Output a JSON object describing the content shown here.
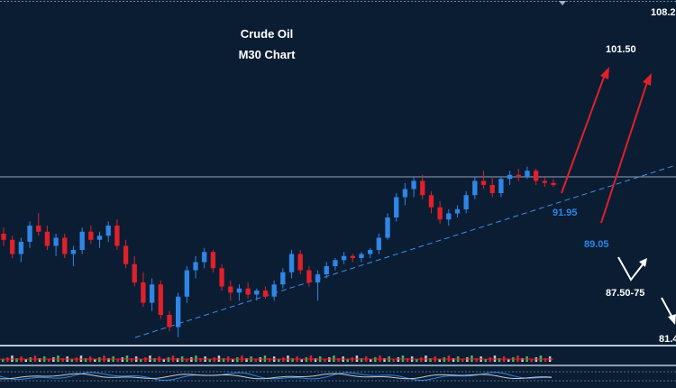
{
  "chart": {
    "title_line1": "Crude Oil",
    "title_line2": "M30 Chart"
  },
  "levels": {
    "top_right_price": "108.2",
    "target_high": "101.50",
    "support_a": "91.95",
    "support_b": "89.05",
    "support_zone": "87.50-75",
    "bottom_right_price": "81.4"
  },
  "colors": {
    "background": "#0b1d33",
    "bull_candle": "#2f86e6",
    "bear_candle": "#e0202a",
    "trendline": "#3a8ee6",
    "arrow_red": "#e0202a",
    "arrow_white": "#ffffff",
    "label_blue": "#2f86e6",
    "label_white": "#ffffff",
    "panel_line": "#9fb2c8"
  },
  "chart_data": {
    "type": "candlestick",
    "title": "Crude Oil M30 Chart",
    "notes": "Approximate OHLC read visually; price axis labels largely off-screen. Values are relative and estimated.",
    "candles": [
      {
        "o": 94.2,
        "h": 94.5,
        "l": 93.6,
        "c": 93.9
      },
      {
        "o": 93.9,
        "h": 94.1,
        "l": 93.0,
        "c": 93.2
      },
      {
        "o": 93.2,
        "h": 94.0,
        "l": 92.8,
        "c": 93.8
      },
      {
        "o": 93.8,
        "h": 94.8,
        "l": 93.5,
        "c": 94.6
      },
      {
        "o": 94.6,
        "h": 95.2,
        "l": 94.1,
        "c": 94.3
      },
      {
        "o": 94.3,
        "h": 94.6,
        "l": 93.4,
        "c": 93.6
      },
      {
        "o": 93.6,
        "h": 94.2,
        "l": 93.1,
        "c": 94.0
      },
      {
        "o": 94.0,
        "h": 94.2,
        "l": 93.0,
        "c": 93.2
      },
      {
        "o": 93.2,
        "h": 93.6,
        "l": 92.6,
        "c": 93.4
      },
      {
        "o": 93.4,
        "h": 94.5,
        "l": 93.2,
        "c": 94.3
      },
      {
        "o": 94.3,
        "h": 94.6,
        "l": 93.7,
        "c": 93.9
      },
      {
        "o": 93.9,
        "h": 94.3,
        "l": 93.5,
        "c": 94.1
      },
      {
        "o": 94.1,
        "h": 94.8,
        "l": 93.8,
        "c": 94.6
      },
      {
        "o": 94.6,
        "h": 94.9,
        "l": 93.4,
        "c": 93.6
      },
      {
        "o": 93.6,
        "h": 93.9,
        "l": 92.5,
        "c": 92.7
      },
      {
        "o": 92.7,
        "h": 93.1,
        "l": 91.6,
        "c": 91.8
      },
      {
        "o": 91.8,
        "h": 92.3,
        "l": 90.6,
        "c": 90.8
      },
      {
        "o": 90.8,
        "h": 92.0,
        "l": 90.4,
        "c": 91.7
      },
      {
        "o": 91.7,
        "h": 91.9,
        "l": 90.0,
        "c": 90.2
      },
      {
        "o": 90.2,
        "h": 90.4,
        "l": 89.4,
        "c": 89.6
      },
      {
        "o": 89.6,
        "h": 91.3,
        "l": 89.1,
        "c": 91.1
      },
      {
        "o": 91.1,
        "h": 92.6,
        "l": 90.8,
        "c": 92.4
      },
      {
        "o": 92.4,
        "h": 93.1,
        "l": 92.0,
        "c": 92.8
      },
      {
        "o": 92.8,
        "h": 93.5,
        "l": 92.5,
        "c": 93.3
      },
      {
        "o": 93.3,
        "h": 93.4,
        "l": 92.3,
        "c": 92.5
      },
      {
        "o": 92.5,
        "h": 92.7,
        "l": 91.4,
        "c": 91.6
      },
      {
        "o": 91.6,
        "h": 91.9,
        "l": 90.9,
        "c": 91.3
      },
      {
        "o": 91.3,
        "h": 91.7,
        "l": 90.9,
        "c": 91.5
      },
      {
        "o": 91.5,
        "h": 91.8,
        "l": 91.0,
        "c": 91.2
      },
      {
        "o": 91.2,
        "h": 91.5,
        "l": 90.9,
        "c": 91.4
      },
      {
        "o": 91.4,
        "h": 91.6,
        "l": 91.0,
        "c": 91.1
      },
      {
        "o": 91.1,
        "h": 91.9,
        "l": 90.9,
        "c": 91.7
      },
      {
        "o": 91.7,
        "h": 92.5,
        "l": 91.5,
        "c": 92.3
      },
      {
        "o": 92.3,
        "h": 93.4,
        "l": 92.0,
        "c": 93.2
      },
      {
        "o": 93.2,
        "h": 93.4,
        "l": 92.2,
        "c": 92.4
      },
      {
        "o": 92.4,
        "h": 92.6,
        "l": 91.6,
        "c": 91.8
      },
      {
        "o": 91.8,
        "h": 92.4,
        "l": 90.9,
        "c": 92.2
      },
      {
        "o": 92.2,
        "h": 92.8,
        "l": 92.0,
        "c": 92.6
      },
      {
        "o": 92.6,
        "h": 93.0,
        "l": 92.4,
        "c": 92.9
      },
      {
        "o": 92.9,
        "h": 93.3,
        "l": 92.7,
        "c": 93.1
      },
      {
        "o": 93.1,
        "h": 93.2,
        "l": 92.8,
        "c": 93.0
      },
      {
        "o": 93.0,
        "h": 93.3,
        "l": 92.8,
        "c": 93.2
      },
      {
        "o": 93.2,
        "h": 93.5,
        "l": 93.0,
        "c": 93.4
      },
      {
        "o": 93.4,
        "h": 94.2,
        "l": 93.2,
        "c": 94.0
      },
      {
        "o": 94.0,
        "h": 95.2,
        "l": 93.9,
        "c": 95.0
      },
      {
        "o": 95.0,
        "h": 96.2,
        "l": 94.8,
        "c": 96.0
      },
      {
        "o": 96.0,
        "h": 96.7,
        "l": 95.6,
        "c": 96.4
      },
      {
        "o": 96.4,
        "h": 97.0,
        "l": 96.0,
        "c": 96.8
      },
      {
        "o": 96.8,
        "h": 97.1,
        "l": 95.9,
        "c": 96.1
      },
      {
        "o": 96.1,
        "h": 96.3,
        "l": 95.2,
        "c": 95.5
      },
      {
        "o": 95.5,
        "h": 95.8,
        "l": 94.7,
        "c": 94.9
      },
      {
        "o": 94.9,
        "h": 95.4,
        "l": 94.6,
        "c": 95.2
      },
      {
        "o": 95.2,
        "h": 95.6,
        "l": 95.0,
        "c": 95.4
      },
      {
        "o": 95.4,
        "h": 96.3,
        "l": 95.2,
        "c": 96.1
      },
      {
        "o": 96.1,
        "h": 97.0,
        "l": 95.9,
        "c": 96.8
      },
      {
        "o": 96.8,
        "h": 97.3,
        "l": 96.4,
        "c": 96.6
      },
      {
        "o": 96.6,
        "h": 97.0,
        "l": 96.0,
        "c": 96.2
      },
      {
        "o": 96.2,
        "h": 97.0,
        "l": 96.0,
        "c": 96.9
      },
      {
        "o": 96.9,
        "h": 97.3,
        "l": 96.6,
        "c": 97.1
      },
      {
        "o": 97.1,
        "h": 97.4,
        "l": 96.8,
        "c": 97.0
      },
      {
        "o": 97.0,
        "h": 97.5,
        "l": 96.9,
        "c": 97.3
      },
      {
        "o": 97.3,
        "h": 97.4,
        "l": 96.6,
        "c": 96.8
      },
      {
        "o": 96.8,
        "h": 97.0,
        "l": 96.5,
        "c": 96.7
      },
      {
        "o": 96.7,
        "h": 96.9,
        "l": 96.5,
        "c": 96.6
      }
    ],
    "trendline_note": "Dashed ascending support trendline from swing low toward right edge",
    "annotations": [
      "91.95",
      "89.05",
      "87.50-75",
      "101.50",
      "108.2",
      "81.4"
    ]
  }
}
